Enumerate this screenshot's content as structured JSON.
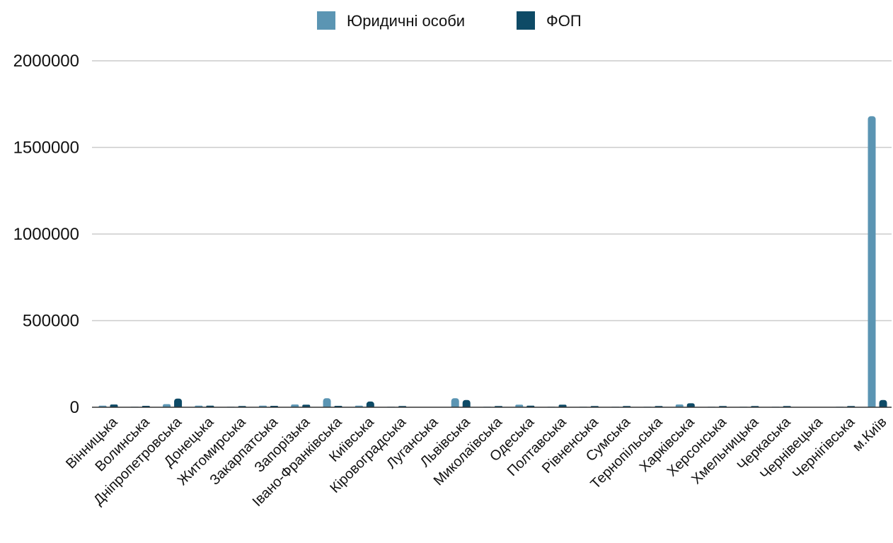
{
  "chart_data": {
    "type": "bar",
    "title": "",
    "xlabel": "",
    "ylabel": "",
    "ylim": [
      0,
      2000000
    ],
    "yticks": [
      0,
      500000,
      1000000,
      1500000,
      2000000
    ],
    "ytick_labels": [
      "0",
      "500000",
      "1000000",
      "1500000",
      "2000000"
    ],
    "grid": true,
    "legend_position": "top",
    "categories": [
      "Вінницька",
      "Волинська",
      "Дніпропетровська",
      "Донецька",
      "Житомирська",
      "Закарпатська",
      "Запорізька",
      "Івано-Франківська",
      "Київська",
      "Кіровоградська",
      "Луганська",
      "Львівська",
      "Миколаївська",
      "Одеська",
      "Полтавська",
      "Рівненська",
      "Сумська",
      "Тернопільська",
      "Харківська",
      "Херсонська",
      "Хмельницька",
      "Черкаська",
      "Чернівецька",
      "Чернігівська",
      "м.Київ"
    ],
    "series": [
      {
        "name": "Юридичні особи",
        "color": "#5b95b3",
        "values": [
          9000,
          3000,
          18000,
          9000,
          3000,
          9000,
          16000,
          52000,
          9000,
          3000,
          0,
          52000,
          3000,
          15000,
          3000,
          3000,
          3000,
          3000,
          16000,
          3000,
          3000,
          3000,
          0,
          3000,
          1680000
        ]
      },
      {
        "name": "ФОП",
        "color": "#0e4a66",
        "values": [
          16000,
          8000,
          50000,
          9000,
          7000,
          8000,
          15000,
          8000,
          33000,
          7000,
          0,
          42000,
          7000,
          9000,
          15000,
          7000,
          7000,
          7000,
          23000,
          7000,
          7000,
          7000,
          0,
          7000,
          42000
        ]
      }
    ]
  }
}
